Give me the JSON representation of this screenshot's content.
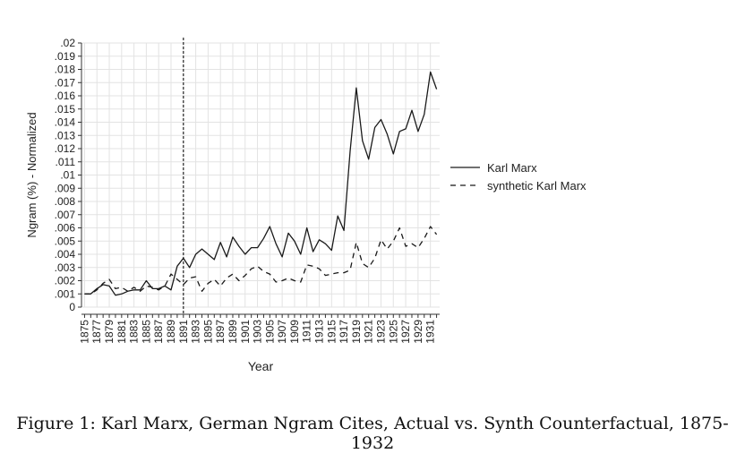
{
  "figure_caption": "Figure 1: Karl Marx, German Ngram Cites, Actual vs. Synth Counterfactual, 1875-1932",
  "chart_data": {
    "type": "line",
    "title": "",
    "xlabel": "Year",
    "ylabel": "Ngram (%) - Normalized",
    "xlim": [
      1875,
      1932
    ],
    "ylim": [
      0,
      0.02
    ],
    "x_ticks": [
      1875,
      1877,
      1879,
      1881,
      1883,
      1885,
      1887,
      1889,
      1891,
      1893,
      1895,
      1897,
      1899,
      1901,
      1903,
      1905,
      1907,
      1909,
      1911,
      1913,
      1915,
      1917,
      1919,
      1921,
      1923,
      1925,
      1927,
      1929,
      1931
    ],
    "y_ticks": [
      0,
      0.001,
      0.002,
      0.003,
      0.004,
      0.005,
      0.006,
      0.007,
      0.008,
      0.009,
      0.01,
      0.011,
      0.012,
      0.013,
      0.014,
      0.015,
      0.016,
      0.017,
      0.018,
      0.019,
      0.02
    ],
    "y_tick_labels": [
      "0",
      ".001",
      ".002",
      ".003",
      ".004",
      ".005",
      ".006",
      ".007",
      ".008",
      ".009",
      ".01",
      ".011",
      ".012",
      ".013",
      ".014",
      ".015",
      ".016",
      ".017",
      ".018",
      ".019",
      ".02"
    ],
    "grid": true,
    "legend_position": "right",
    "reference_line": {
      "x": 1891,
      "style": "dotted"
    },
    "x": [
      1875,
      1876,
      1877,
      1878,
      1879,
      1880,
      1881,
      1882,
      1883,
      1884,
      1885,
      1886,
      1887,
      1888,
      1889,
      1890,
      1891,
      1892,
      1893,
      1894,
      1895,
      1896,
      1897,
      1898,
      1899,
      1900,
      1901,
      1902,
      1903,
      1904,
      1905,
      1906,
      1907,
      1908,
      1909,
      1910,
      1911,
      1912,
      1913,
      1914,
      1915,
      1916,
      1917,
      1918,
      1919,
      1920,
      1921,
      1922,
      1923,
      1924,
      1925,
      1926,
      1927,
      1928,
      1929,
      1930,
      1931,
      1932
    ],
    "series": [
      {
        "name": "Karl Marx",
        "style": "solid",
        "values": [
          0.001,
          0.001,
          0.0014,
          0.0017,
          0.0016,
          0.0009,
          0.001,
          0.0012,
          0.0013,
          0.0013,
          0.002,
          0.0014,
          0.0014,
          0.0016,
          0.0013,
          0.0031,
          0.0037,
          0.003,
          0.004,
          0.0044,
          0.004,
          0.0036,
          0.0049,
          0.0038,
          0.0053,
          0.0046,
          0.004,
          0.0045,
          0.0045,
          0.0052,
          0.0061,
          0.0048,
          0.0038,
          0.0056,
          0.005,
          0.004,
          0.006,
          0.0042,
          0.0051,
          0.0048,
          0.0043,
          0.0069,
          0.0058,
          0.0118,
          0.0166,
          0.0126,
          0.0112,
          0.0136,
          0.0142,
          0.0131,
          0.0116,
          0.0133,
          0.0135,
          0.0149,
          0.0133,
          0.0146,
          0.0178,
          0.0165
        ]
      },
      {
        "name": "synthetic Karl Marx",
        "style": "dashed",
        "values": [
          0.001,
          0.001,
          0.0013,
          0.0018,
          0.0021,
          0.0014,
          0.0015,
          0.0012,
          0.0015,
          0.0012,
          0.0016,
          0.0015,
          0.0013,
          0.0016,
          0.0025,
          0.0021,
          0.0017,
          0.0022,
          0.0023,
          0.0012,
          0.0018,
          0.0021,
          0.0016,
          0.0022,
          0.0025,
          0.002,
          0.0024,
          0.0029,
          0.0031,
          0.0027,
          0.0025,
          0.0019,
          0.002,
          0.0022,
          0.002,
          0.0019,
          0.0032,
          0.0031,
          0.0029,
          0.0024,
          0.0025,
          0.0026,
          0.0026,
          0.0028,
          0.0049,
          0.0033,
          0.003,
          0.0037,
          0.0051,
          0.0044,
          0.005,
          0.006,
          0.0046,
          0.0048,
          0.0045,
          0.0052,
          0.0061,
          0.0055
        ]
      }
    ]
  }
}
